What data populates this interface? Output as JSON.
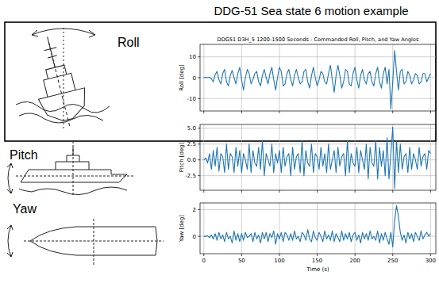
{
  "title": "DDG-51 Sea state 6 motion example",
  "motion_labels": [
    "Roll",
    "Pitch",
    "Yaw"
  ],
  "chart_data": [
    {
      "type": "line",
      "title": "DDG51 D3H_5 1200-1500 Seconds - Commanded Roll, Pitch, and Yaw Angles",
      "y_label": "Roll [deg]",
      "x": [
        0,
        2.5,
        5,
        7.5,
        10,
        12.5,
        15,
        17.5,
        20,
        22.5,
        25,
        27.5,
        30,
        32.5,
        35,
        37.5,
        40,
        42.5,
        45,
        47.5,
        50,
        52.5,
        55,
        57.5,
        60,
        62.5,
        65,
        67.5,
        70,
        72.5,
        75,
        77.5,
        80,
        82.5,
        85,
        87.5,
        90,
        92.5,
        95,
        97.5,
        100,
        102.5,
        105,
        107.5,
        110,
        112.5,
        115,
        117.5,
        120,
        122.5,
        125,
        127.5,
        130,
        132.5,
        135,
        137.5,
        140,
        142.5,
        145,
        147.5,
        150,
        152.5,
        155,
        157.5,
        160,
        162.5,
        165,
        167.5,
        170,
        172.5,
        175,
        177.5,
        180,
        182.5,
        185,
        187.5,
        190,
        192.5,
        195,
        197.5,
        200,
        202.5,
        205,
        207.5,
        210,
        212.5,
        215,
        217.5,
        220,
        222.5,
        225,
        227.5,
        230,
        232.5,
        235,
        237.5,
        240,
        242.5,
        245,
        247.5,
        250,
        252.5,
        255,
        257.5,
        260,
        262.5,
        265,
        267.5,
        270,
        272.5,
        275,
        277.5,
        280,
        282.5,
        285,
        287.5,
        290,
        292.5,
        295,
        297.5,
        300
      ],
      "series": [
        {
          "color": "#1f77b4",
          "values": [
            0,
            0.2,
            0,
            0.3,
            -0.5,
            -2,
            1.5,
            3,
            -1,
            -3,
            2,
            4,
            -2,
            -4,
            1,
            3.5,
            0,
            -3,
            2,
            5,
            -1,
            -6,
            0,
            4,
            2,
            -3,
            -1,
            2,
            3,
            -2,
            -4,
            1,
            4,
            0,
            -3,
            2,
            5,
            -1,
            -6,
            0,
            5,
            3,
            -4,
            -3,
            2,
            4,
            -1,
            -4,
            1,
            4,
            0,
            -3,
            -2,
            3,
            4,
            -2,
            -5,
            1,
            5,
            0,
            -4,
            -1,
            3,
            2,
            -2,
            -3,
            2,
            6,
            -1,
            -7,
            1,
            6,
            1,
            -5,
            -2,
            4,
            3,
            -3,
            -4,
            2,
            5,
            -1,
            -5,
            1,
            4,
            -1,
            -3,
            2,
            3,
            -2,
            -4,
            2,
            5,
            -2,
            -5,
            2,
            5,
            -3,
            4,
            -15,
            -2,
            13,
            3,
            -6,
            3,
            4,
            -3,
            -2,
            3,
            1,
            -3,
            -1,
            2,
            1,
            -3,
            -2,
            2,
            2,
            -2,
            0,
            2
          ]
        }
      ],
      "xlim": [
        -5,
        307
      ],
      "xticks": [
        0,
        50,
        100,
        150,
        200,
        250,
        300
      ],
      "ylim": [
        -16,
        16
      ],
      "yticks": [
        -10,
        0,
        10
      ],
      "grid": true,
      "tick_labels": "y"
    },
    {
      "type": "line",
      "y_label": "Pitch [deg]",
      "x": [
        0,
        2.5,
        5,
        7.5,
        10,
        12.5,
        15,
        17.5,
        20,
        22.5,
        25,
        27.5,
        30,
        32.5,
        35,
        37.5,
        40,
        42.5,
        45,
        47.5,
        50,
        52.5,
        55,
        57.5,
        60,
        62.5,
        65,
        67.5,
        70,
        72.5,
        75,
        77.5,
        80,
        82.5,
        85,
        87.5,
        90,
        92.5,
        95,
        97.5,
        100,
        102.5,
        105,
        107.5,
        110,
        112.5,
        115,
        117.5,
        120,
        122.5,
        125,
        127.5,
        130,
        132.5,
        135,
        137.5,
        140,
        142.5,
        145,
        147.5,
        150,
        152.5,
        155,
        157.5,
        160,
        162.5,
        165,
        167.5,
        170,
        172.5,
        175,
        177.5,
        180,
        182.5,
        185,
        187.5,
        190,
        192.5,
        195,
        197.5,
        200,
        202.5,
        205,
        207.5,
        210,
        212.5,
        215,
        217.5,
        220,
        222.5,
        225,
        227.5,
        230,
        232.5,
        235,
        237.5,
        240,
        242.5,
        245,
        247.5,
        250,
        252.5,
        255,
        257.5,
        260,
        262.5,
        265,
        267.5,
        270,
        272.5,
        275,
        277.5,
        280,
        282.5,
        285,
        287.5,
        290,
        292.5,
        295,
        297.5,
        300
      ],
      "series": [
        {
          "color": "#1f77b4",
          "values": [
            0,
            0.3,
            -0.5,
            1,
            -1.5,
            1.5,
            -1,
            2,
            -1.8,
            1,
            0.5,
            -2,
            2.5,
            -1.5,
            1,
            0.5,
            -2,
            2,
            -1,
            1.5,
            -2,
            1,
            0,
            -1.5,
            2.5,
            -2,
            1.5,
            -0.5,
            -1,
            2,
            -1.5,
            3,
            -2.5,
            1,
            0,
            -1,
            2.5,
            -2,
            1,
            -0.5,
            1.5,
            -2,
            2,
            -1,
            0.5,
            1,
            -2.5,
            2,
            -1.5,
            0.5,
            1,
            -2,
            3,
            -2.5,
            1.5,
            -0.5,
            -1,
            2.5,
            -2,
            1,
            0.5,
            -1.5,
            2,
            -1,
            1,
            -2,
            2.5,
            -1.5,
            0,
            1.5,
            -2,
            2,
            -1,
            0.5,
            1,
            -2.5,
            3,
            -2,
            1,
            -0.5,
            -1,
            2,
            -2,
            1.5,
            0,
            -1.5,
            2.5,
            -3,
            2,
            -0.5,
            -1,
            3,
            -3,
            2,
            -1,
            1.5,
            -2.5,
            3.5,
            -3,
            1,
            5.2,
            -4.5,
            3,
            -2,
            2.5,
            -1.5,
            0.5,
            1,
            -2,
            2,
            -1.5,
            1,
            0,
            -1.5,
            2,
            -1,
            0.5,
            1,
            -1.5,
            1.5,
            1
          ]
        }
      ],
      "xlim": [
        -5,
        307
      ],
      "xticks": [
        0,
        50,
        100,
        150,
        200,
        250,
        300
      ],
      "ylim": [
        -4.8,
        5.6
      ],
      "yticks": [
        -2.5,
        {
          "value": 0,
          "label": "0.0"
        },
        2.5,
        {
          "value": 5,
          "label": "5.0"
        }
      ],
      "grid": true,
      "tick_labels": "y"
    },
    {
      "type": "line",
      "y_label": "Yaw [deg]",
      "x_label": "Time (s)",
      "x": [
        0,
        2.5,
        5,
        7.5,
        10,
        12.5,
        15,
        17.5,
        20,
        22.5,
        25,
        27.5,
        30,
        32.5,
        35,
        37.5,
        40,
        42.5,
        45,
        47.5,
        50,
        52.5,
        55,
        57.5,
        60,
        62.5,
        65,
        67.5,
        70,
        72.5,
        75,
        77.5,
        80,
        82.5,
        85,
        87.5,
        90,
        92.5,
        95,
        97.5,
        100,
        102.5,
        105,
        107.5,
        110,
        112.5,
        115,
        117.5,
        120,
        122.5,
        125,
        127.5,
        130,
        132.5,
        135,
        137.5,
        140,
        142.5,
        145,
        147.5,
        150,
        152.5,
        155,
        157.5,
        160,
        162.5,
        165,
        167.5,
        170,
        172.5,
        175,
        177.5,
        180,
        182.5,
        185,
        187.5,
        190,
        192.5,
        195,
        197.5,
        200,
        202.5,
        205,
        207.5,
        210,
        212.5,
        215,
        217.5,
        220,
        222.5,
        225,
        227.5,
        230,
        232.5,
        235,
        237.5,
        240,
        242.5,
        245,
        247.5,
        250,
        252.5,
        255,
        257.5,
        260,
        262.5,
        265,
        267.5,
        270,
        272.5,
        275,
        277.5,
        280,
        282.5,
        285,
        287.5,
        290,
        292.5,
        295,
        297.5,
        300
      ],
      "series": [
        {
          "color": "#1f77b4",
          "values": [
            0,
            0,
            0.05,
            -0.1,
            0.1,
            -0.2,
            0.2,
            -0.3,
            0.3,
            -0.2,
            0.1,
            -0.4,
            0.3,
            -0.2,
            0,
            -0.5,
            0.4,
            -0.3,
            0.2,
            -0.4,
            0.2,
            -0.3,
            0.3,
            -0.1,
            0,
            0.2,
            -0.4,
            0.3,
            -0.2,
            0.1,
            -0.5,
            0.3,
            -0.2,
            0.3,
            -0.4,
            0.2,
            -0.1,
            0.4,
            -0.6,
            0.2,
            -0.2,
            0.3,
            -0.4,
            0.3,
            0.1,
            -0.3,
            0.2,
            -0.3,
            0.4,
            -0.2,
            0,
            -0.4,
            0.3,
            0.1,
            -0.3,
            0.5,
            -0.2,
            -0.4,
            0.4,
            -0.1,
            -0.3,
            0.3,
            0,
            -0.4,
            0.4,
            -0.2,
            0.1,
            -0.3,
            0.4,
            -0.4,
            0.2,
            -0.1,
            -0.4,
            0.4,
            -0.3,
            0.2,
            -0.2,
            0.3,
            -0.4,
            0.1,
            0.3,
            -0.3,
            0.1,
            -0.5,
            0.3,
            -0.2,
            0.2,
            -0.3,
            0.4,
            -0.2,
            0,
            -0.3,
            0.4,
            -0.5,
            0.2,
            -0.3,
            0.3,
            -0.2,
            -0.6,
            0.3,
            -0.8,
            1.2,
            2.3,
            1.5,
            0.3,
            -0.3,
            0.1,
            -0.5,
            0.3,
            -0.2,
            0.2,
            -0.4,
            0.3,
            0,
            -0.3,
            0.4,
            -0.2,
            0.1,
            0.3,
            0,
            0.2
          ]
        }
      ],
      "xlim": [
        -5,
        307
      ],
      "xticks": [
        0,
        50,
        100,
        150,
        200,
        250,
        300
      ],
      "ylim": [
        -1.3,
        2.5
      ],
      "yticks": [
        0,
        2
      ],
      "grid": true
    }
  ]
}
